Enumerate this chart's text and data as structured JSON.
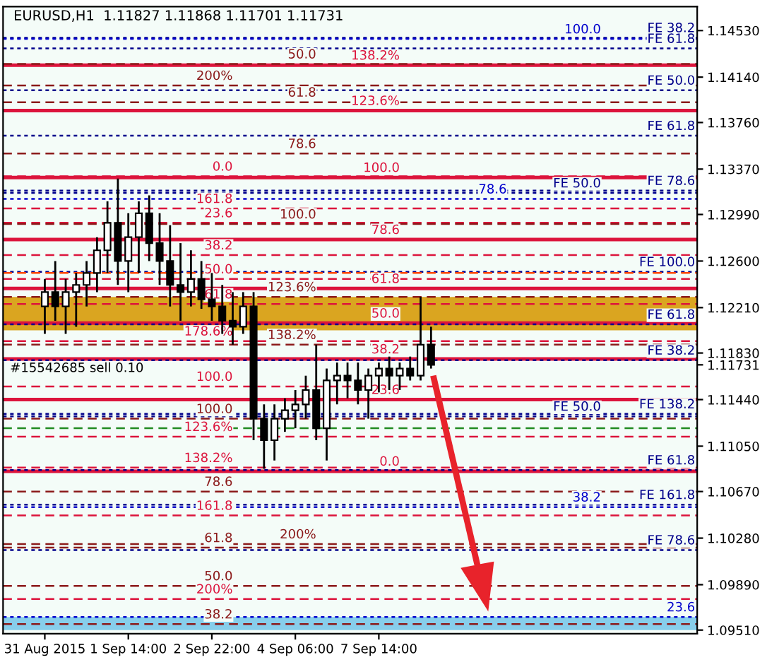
{
  "chart_data": {
    "type": "candlestick",
    "title": "EURUSD,H1  1.11827 1.11868 1.11701 1.11731",
    "categories": [
      "31 Aug 2015",
      null,
      null,
      null,
      null,
      null,
      null,
      null,
      "1 Sep 14:00",
      null,
      null,
      null,
      null,
      null,
      null,
      null,
      "2 Sep 22:00",
      null,
      null,
      null,
      null,
      null,
      null,
      null,
      "4 Sep 06:00",
      null,
      null,
      null,
      null,
      null,
      null,
      null,
      "7 Sep 14:00",
      null,
      null,
      null,
      null,
      null,
      null,
      null,
      null,
      null,
      null,
      null,
      null,
      null,
      null,
      null,
      null,
      null,
      null,
      null,
      null,
      null,
      null,
      null,
      null,
      null,
      null,
      null,
      null,
      null,
      null
    ],
    "ohlc": [
      [
        1.1222,
        1.1245,
        1.1199,
        1.1234
      ],
      [
        1.1234,
        1.126,
        1.121,
        1.1222
      ],
      [
        1.1222,
        1.1245,
        1.1199,
        1.1234
      ],
      [
        1.1234,
        1.125,
        1.1205,
        1.124
      ],
      [
        1.124,
        1.126,
        1.1222,
        1.125
      ],
      [
        1.125,
        1.128,
        1.1234,
        1.1269
      ],
      [
        1.1269,
        1.131,
        1.125,
        1.1292
      ],
      [
        1.1292,
        1.1329,
        1.124,
        1.126
      ],
      [
        1.126,
        1.13,
        1.1234,
        1.128
      ],
      [
        1.128,
        1.131,
        1.125,
        1.13
      ],
      [
        1.13,
        1.1315,
        1.126,
        1.1275
      ],
      [
        1.1275,
        1.13,
        1.124,
        1.126
      ],
      [
        1.126,
        1.129,
        1.1222,
        1.124
      ],
      [
        1.124,
        1.1275,
        1.121,
        1.1234
      ],
      [
        1.1234,
        1.1269,
        1.1222,
        1.1245
      ],
      [
        1.1245,
        1.126,
        1.122,
        1.1228
      ],
      [
        1.1228,
        1.125,
        1.121,
        1.1222
      ],
      [
        1.1222,
        1.124,
        1.1199,
        1.121
      ],
      [
        1.121,
        1.1234,
        1.119,
        1.1205
      ],
      [
        1.1205,
        1.1234,
        1.1199,
        1.1222
      ],
      [
        1.1222,
        1.1234,
        1.111,
        1.1128
      ],
      [
        1.1128,
        1.114,
        1.1086,
        1.111
      ],
      [
        1.111,
        1.114,
        1.1093,
        1.1128
      ],
      [
        1.1128,
        1.1145,
        1.1117,
        1.1135
      ],
      [
        1.1135,
        1.1152,
        1.112,
        1.114
      ],
      [
        1.114,
        1.1164,
        1.1128,
        1.1152
      ],
      [
        1.1152,
        1.119,
        1.111,
        1.112
      ],
      [
        1.112,
        1.117,
        1.1093,
        1.116
      ],
      [
        1.116,
        1.1175,
        1.114,
        1.1164
      ],
      [
        1.1164,
        1.1175,
        1.1145,
        1.116
      ],
      [
        1.116,
        1.1175,
        1.114,
        1.1152
      ],
      [
        1.1152,
        1.117,
        1.1128,
        1.1164
      ],
      [
        1.1164,
        1.1175,
        1.115,
        1.117
      ],
      [
        1.117,
        1.118,
        1.1152,
        1.1164
      ],
      [
        1.1164,
        1.1175,
        1.1152,
        1.117
      ],
      [
        1.117,
        1.118,
        1.116,
        1.1164
      ],
      [
        1.1164,
        1.123,
        1.116,
        1.119
      ],
      [
        1.119,
        1.1205,
        1.117,
        1.11731
      ],
      null,
      null,
      null,
      null,
      null,
      null,
      null,
      null,
      null,
      null,
      null,
      null,
      null,
      null,
      null,
      null,
      null,
      null,
      null,
      null,
      null,
      null,
      null,
      null,
      null
    ],
    "color": "#000000",
    "ylim": [
      1.0948,
      1.1473
    ],
    "yticks": [
      {
        "value": 1.1453,
        "label": "1.14530"
      },
      {
        "value": 1.1414,
        "label": "1.14140"
      },
      {
        "value": 1.1376,
        "label": "1.13760"
      },
      {
        "value": 1.1337,
        "label": "1.13370"
      },
      {
        "value": 1.1299,
        "label": "1.12990"
      },
      {
        "value": 1.126,
        "label": "1.12600"
      },
      {
        "value": 1.1221,
        "label": "1.12210"
      },
      {
        "value": 1.1183,
        "label": "1.11830"
      },
      {
        "value": 1.11731,
        "label": "1.11731"
      },
      {
        "value": 1.1144,
        "label": "1.11440"
      },
      {
        "value": 1.1105,
        "label": "1.11050"
      },
      {
        "value": 1.1067,
        "label": "1.10670"
      },
      {
        "value": 1.1028,
        "label": "1.10280"
      },
      {
        "value": 1.0989,
        "label": "1.09890"
      },
      {
        "value": 1.0951,
        "label": "1.09510"
      }
    ],
    "ref_lines": [
      {
        "axis": "y",
        "value": 1.1424,
        "color": "#dc143c",
        "line_style": "solid"
      },
      {
        "axis": "y",
        "value": 1.1386,
        "color": "#dc143c",
        "line_style": "solid"
      },
      {
        "axis": "y",
        "value": 1.133,
        "color": "#dc143c",
        "line_style": "solid"
      },
      {
        "axis": "y",
        "value": 1.1278,
        "color": "#dc143c",
        "line_style": "solid"
      },
      {
        "axis": "y",
        "value": 1.1237,
        "color": "#dc143c",
        "line_style": "solid"
      },
      {
        "axis": "y",
        "value": 1.1208,
        "color": "#dc143c",
        "line_style": "solid"
      },
      {
        "axis": "y",
        "value": 1.1178,
        "color": "#dc143c",
        "line_style": "solid"
      },
      {
        "axis": "y",
        "value": 1.1144,
        "color": "#dc143c",
        "line_style": "solid"
      },
      {
        "axis": "y",
        "value": 1.1084,
        "color": "#dc143c",
        "line_style": "solid"
      },
      {
        "axis": "y",
        "value": 1.1425,
        "color": "#8b1a1a",
        "line_style": "dashed"
      },
      {
        "axis": "y",
        "value": 1.1407,
        "color": "#8b1a1a",
        "line_style": "dashed"
      },
      {
        "axis": "y",
        "value": 1.1393,
        "color": "#8b1a1a",
        "line_style": "dashed"
      },
      {
        "axis": "y",
        "value": 1.135,
        "color": "#8b1a1a",
        "line_style": "dashed"
      },
      {
        "axis": "y",
        "value": 1.1331,
        "color": "#dc143c",
        "line_style": "dashed"
      },
      {
        "axis": "y",
        "value": 1.1304,
        "color": "#dc143c",
        "line_style": "dashed"
      },
      {
        "axis": "y",
        "value": 1.1292,
        "color": "#dc143c",
        "line_style": "dashed"
      },
      {
        "axis": "y",
        "value": 1.1291,
        "color": "#8b1a1a",
        "line_style": "dashed"
      },
      {
        "axis": "y",
        "value": 1.1265,
        "color": "#dc143c",
        "line_style": "dashed"
      },
      {
        "axis": "y",
        "value": 1.1245,
        "color": "#dc143c",
        "line_style": "dashed"
      },
      {
        "axis": "y",
        "value": 1.123,
        "color": "#8b1a1a",
        "line_style": "dashed"
      },
      {
        "axis": "y",
        "value": 1.1224,
        "color": "#dc143c",
        "line_style": "dashed"
      },
      {
        "axis": "y",
        "value": 1.1193,
        "color": "#dc143c",
        "line_style": "dashed"
      },
      {
        "axis": "y",
        "value": 1.119,
        "color": "#8b1a1a",
        "line_style": "dashed"
      },
      {
        "axis": "y",
        "value": 1.1155,
        "color": "#dc143c",
        "line_style": "dashed"
      },
      {
        "axis": "y",
        "value": 1.1128,
        "color": "#8b1a1a",
        "line_style": "dashed"
      },
      {
        "axis": "y",
        "value": 1.1113,
        "color": "#dc143c",
        "line_style": "dashed"
      },
      {
        "axis": "y",
        "value": 1.1087,
        "color": "#dc143c",
        "line_style": "dashed"
      },
      {
        "axis": "y",
        "value": 1.1067,
        "color": "#8b1a1a",
        "line_style": "dashed"
      },
      {
        "axis": "y",
        "value": 1.1047,
        "color": "#dc143c",
        "line_style": "dashed"
      },
      {
        "axis": "y",
        "value": 1.1023,
        "color": "#8b1a1a",
        "line_style": "dashed"
      },
      {
        "axis": "y",
        "value": 1.102,
        "color": "#8b1a1a",
        "line_style": "dashed"
      },
      {
        "axis": "y",
        "value": 1.0988,
        "color": "#8b1a1a",
        "line_style": "dashed"
      },
      {
        "axis": "y",
        "value": 1.0977,
        "color": "#dc143c",
        "line_style": "dashed"
      },
      {
        "axis": "y",
        "value": 1.0956,
        "color": "#8b1a1a",
        "line_style": "dashed"
      },
      {
        "axis": "y",
        "value": 1.1447,
        "label": "FE 38.2",
        "color": "#00008b",
        "line_style": "dotted"
      },
      {
        "axis": "y",
        "value": 1.1403,
        "label": "FE 50.0",
        "color": "#00008b",
        "line_style": "dotted"
      },
      {
        "axis": "y",
        "value": 1.1365,
        "label": "FE 61.8",
        "color": "#00008b",
        "line_style": "dotted"
      },
      {
        "axis": "y",
        "value": 1.1319,
        "label": "FE 78.6",
        "color": "#00008b",
        "line_style": "dotted"
      },
      {
        "axis": "y",
        "value": 1.1251,
        "label": "FE 100.0",
        "color": "#00008b",
        "line_style": "dotted"
      },
      {
        "axis": "y",
        "value": 1.1132,
        "label": "FE 138.2",
        "color": "#00008b",
        "line_style": "dotted"
      },
      {
        "axis": "y",
        "value": 1.1056,
        "label": "FE 161.8",
        "color": "#00008b",
        "line_style": "dotted"
      },
      {
        "axis": "y",
        "value": 1.1438,
        "label": "FE 61.8",
        "color": "#00008b",
        "line_style": "dotted"
      },
      {
        "axis": "y",
        "value": 1.1317,
        "label": "FE 50.0",
        "color": "#00008b",
        "line_style": "dotted"
      },
      {
        "axis": "y",
        "value": 1.1207,
        "label": "FE 61.8",
        "color": "#00008b",
        "line_style": "dotted"
      },
      {
        "axis": "y",
        "value": 1.1177,
        "label": "FE 38.2",
        "color": "#00008b",
        "line_style": "dotted"
      },
      {
        "axis": "y",
        "value": 1.113,
        "label": "FE 50.0",
        "color": "#00008b",
        "line_style": "dotted"
      },
      {
        "axis": "y",
        "value": 1.1085,
        "label": "FE 61.8",
        "color": "#00008b",
        "line_style": "dotted"
      },
      {
        "axis": "y",
        "value": 1.1018,
        "label": "FE 78.6",
        "color": "#00008b",
        "line_style": "dotted"
      },
      {
        "axis": "y",
        "value": 1.1446,
        "color": "#0000cd",
        "line_style": "dotted"
      },
      {
        "axis": "y",
        "value": 1.1312,
        "color": "#0000cd",
        "line_style": "dotted"
      },
      {
        "axis": "y",
        "value": 1.1054,
        "color": "#0000cd",
        "line_style": "dotted"
      },
      {
        "axis": "y",
        "value": 1.0962,
        "color": "#0000cd",
        "line_style": "dotted"
      },
      {
        "axis": "y",
        "value": 1.125,
        "color": "#ff4500",
        "line_style": "dashed"
      },
      {
        "axis": "y",
        "value": 1.112,
        "color": "#228b22",
        "line_style": "dashed"
      }
    ],
    "bands": [
      {
        "axis": "y",
        "from": 1.1202,
        "to": 1.123,
        "color": "#daa520"
      },
      {
        "axis": "y",
        "from": 1.0951,
        "to": 1.0962,
        "color": "#87ceeb"
      }
    ],
    "annotations": [
      "#15542685 sell 0.10",
      {
        "text": "138.2%",
        "x": "7 Sep 14:00",
        "y": 1.1424
      },
      {
        "text": "123.6%",
        "x": "7 Sep 14:00",
        "y": 1.1386
      },
      {
        "text": "100.0",
        "x": "7 Sep 14:00",
        "y": 1.133
      },
      {
        "text": "78.6",
        "x": "7 Sep 14:00",
        "y": 1.1278
      },
      {
        "text": "61.8",
        "x": "7 Sep 14:00",
        "y": 1.1237
      },
      {
        "text": "50.0",
        "x": "7 Sep 14:00",
        "y": 1.1208
      },
      {
        "text": "38.2",
        "x": "7 Sep 14:00",
        "y": 1.1178
      },
      {
        "text": "23.6",
        "x": "7 Sep 14:00",
        "y": 1.1144
      },
      {
        "text": "0.0",
        "x": "7 Sep 14:00",
        "y": 1.1084
      },
      {
        "text": "50.0",
        "x": "4 Sep 06:00",
        "y": 1.1425
      },
      {
        "text": "200%",
        "x": "2 Sep 22:00",
        "y": 1.1407
      },
      {
        "text": "61.8",
        "x": "4 Sep 06:00",
        "y": 1.1393
      },
      {
        "text": "78.6",
        "x": "4 Sep 06:00",
        "y": 1.135
      },
      {
        "text": "0.0",
        "x": "2 Sep 22:00",
        "y": 1.1331
      },
      {
        "text": "161.8",
        "x": "2 Sep 22:00",
        "y": 1.1304
      },
      {
        "text": "23.6",
        "x": "2 Sep 22:00",
        "y": 1.1292
      },
      {
        "text": "100.0",
        "x": "4 Sep 06:00",
        "y": 1.1291
      },
      {
        "text": "38.2",
        "x": "2 Sep 22:00",
        "y": 1.1265
      },
      {
        "text": "50.0",
        "x": "2 Sep 22:00",
        "y": 1.1245
      },
      {
        "text": "123.6%",
        "x": "4 Sep 06:00",
        "y": 1.123
      },
      {
        "text": "61.8",
        "x": "2 Sep 22:00",
        "y": 1.1224
      },
      {
        "text": "178.6%",
        "x": "2 Sep 22:00",
        "y": 1.1193
      },
      {
        "text": "138.2%",
        "x": "4 Sep 06:00",
        "y": 1.119
      },
      {
        "text": "100.0",
        "x": "2 Sep 22:00",
        "y": 1.1155
      },
      {
        "text": "100.0",
        "x": "2 Sep 22:00",
        "y": 1.1128
      },
      {
        "text": "123.6%",
        "x": "2 Sep 22:00",
        "y": 1.1113
      },
      {
        "text": "138.2%",
        "x": "2 Sep 22:00",
        "y": 1.1087
      },
      {
        "text": "78.6",
        "x": "2 Sep 22:00",
        "y": 1.1067
      },
      {
        "text": "161.8",
        "x": "2 Sep 22:00",
        "y": 1.1047
      },
      {
        "text": "200%",
        "x": "4 Sep 06:00",
        "y": 1.1023
      },
      {
        "text": "61.8",
        "x": "2 Sep 22:00",
        "y": 1.102
      },
      {
        "text": "50.0",
        "x": "2 Sep 22:00",
        "y": 1.0988
      },
      {
        "text": "200%",
        "x": "2 Sep 22:00",
        "y": 1.0977
      },
      {
        "text": "38.2",
        "x": "2 Sep 22:00",
        "y": 1.0956
      },
      {
        "text": "100.0",
        "y": 1.1446
      },
      {
        "text": "78.6",
        "y": 1.1312
      },
      {
        "text": "38.2",
        "y": 1.1054
      },
      {
        "text": "23.6",
        "y": 1.0962
      }
    ],
    "grid": false,
    "legend": false
  }
}
